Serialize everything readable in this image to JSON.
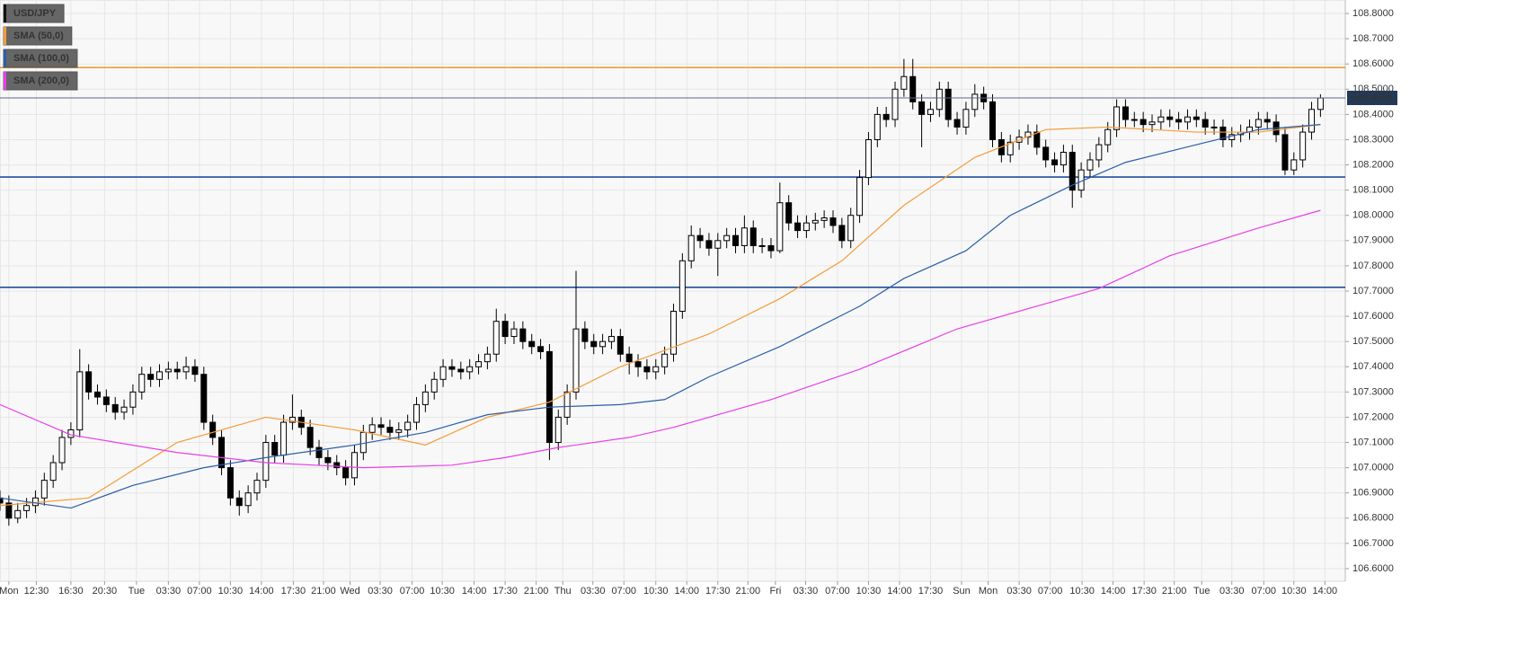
{
  "chart_data": {
    "type": "candlestick",
    "name": "USD/JPY",
    "color": "#000000",
    "up_color": "#ffffff",
    "down_color": "#000000",
    "xlim": [
      0,
      151.8
    ],
    "ylim": [
      106.55,
      108.85
    ],
    "grid": true,
    "yticks": [
      {
        "value": 106.6,
        "label": "106.6000"
      },
      {
        "value": 106.7,
        "label": "106.7000"
      },
      {
        "value": 106.8,
        "label": "106.8000"
      },
      {
        "value": 106.9,
        "label": "106.9000"
      },
      {
        "value": 107.0,
        "label": "107.0000"
      },
      {
        "value": 107.1,
        "label": "107.1000"
      },
      {
        "value": 107.2,
        "label": "107.2000"
      },
      {
        "value": 107.3,
        "label": "107.3000"
      },
      {
        "value": 107.4,
        "label": "107.4000"
      },
      {
        "value": 107.5,
        "label": "107.5000"
      },
      {
        "value": 107.6,
        "label": "107.6000"
      },
      {
        "value": 107.7,
        "label": "107.7000"
      },
      {
        "value": 107.8,
        "label": "107.8000"
      },
      {
        "value": 107.9,
        "label": "107.9000"
      },
      {
        "value": 108.0,
        "label": "108.0000"
      },
      {
        "value": 108.1,
        "label": "108.1000"
      },
      {
        "value": 108.2,
        "label": "108.2000"
      },
      {
        "value": 108.3,
        "label": "108.3000"
      },
      {
        "value": 108.4,
        "label": "108.4000"
      },
      {
        "value": 108.5,
        "label": "108.5000"
      },
      {
        "value": 108.6,
        "label": "108.6000"
      },
      {
        "value": 108.7,
        "label": "108.7000"
      },
      {
        "value": 108.8,
        "label": "108.8000"
      }
    ],
    "xticks": [
      {
        "value": 1.0,
        "label": "Mon"
      },
      {
        "value": 4.1,
        "label": "12:30"
      },
      {
        "value": 8.0,
        "label": "16:30"
      },
      {
        "value": 11.8,
        "label": "20:30"
      },
      {
        "value": 15.4,
        "label": "Tue"
      },
      {
        "value": 19.0,
        "label": "03:30"
      },
      {
        "value": 22.5,
        "label": "07:00"
      },
      {
        "value": 26.0,
        "label": "10:30"
      },
      {
        "value": 29.5,
        "label": "14:00"
      },
      {
        "value": 33.1,
        "label": "17:30"
      },
      {
        "value": 36.5,
        "label": "21:00"
      },
      {
        "value": 39.5,
        "label": "Wed"
      },
      {
        "value": 42.9,
        "label": "03:30"
      },
      {
        "value": 46.5,
        "label": "07:00"
      },
      {
        "value": 49.9,
        "label": "10:30"
      },
      {
        "value": 53.5,
        "label": "14:00"
      },
      {
        "value": 57.0,
        "label": "17:30"
      },
      {
        "value": 60.5,
        "label": "21:00"
      },
      {
        "value": 63.5,
        "label": "Thu"
      },
      {
        "value": 66.9,
        "label": "03:30"
      },
      {
        "value": 70.4,
        "label": "07:00"
      },
      {
        "value": 74.0,
        "label": "10:30"
      },
      {
        "value": 77.5,
        "label": "14:00"
      },
      {
        "value": 81.0,
        "label": "17:30"
      },
      {
        "value": 84.4,
        "label": "21:00"
      },
      {
        "value": 87.5,
        "label": "Fri"
      },
      {
        "value": 90.9,
        "label": "03:30"
      },
      {
        "value": 94.5,
        "label": "07:00"
      },
      {
        "value": 98.0,
        "label": "10:30"
      },
      {
        "value": 101.5,
        "label": "14:00"
      },
      {
        "value": 105.0,
        "label": "17:30"
      },
      {
        "value": 108.5,
        "label": "Sun"
      },
      {
        "value": 111.5,
        "label": "Mon"
      },
      {
        "value": 115.0,
        "label": "03:30"
      },
      {
        "value": 118.5,
        "label": "07:00"
      },
      {
        "value": 122.1,
        "label": "10:30"
      },
      {
        "value": 125.6,
        "label": "14:00"
      },
      {
        "value": 129.1,
        "label": "17:30"
      },
      {
        "value": 132.5,
        "label": "21:00"
      },
      {
        "value": 135.6,
        "label": "Tue"
      },
      {
        "value": 139.0,
        "label": "03:30"
      },
      {
        "value": 142.6,
        "label": "07:00"
      },
      {
        "value": 146.0,
        "label": "10:30"
      },
      {
        "value": 149.5,
        "label": "14:00"
      }
    ],
    "x": [
      0,
      1,
      2,
      3,
      4,
      5,
      6,
      7,
      8,
      9,
      10,
      11,
      12,
      13,
      14,
      15,
      16,
      17,
      18,
      19,
      20,
      21,
      22,
      23,
      24,
      25,
      26,
      27,
      28,
      29,
      30,
      31,
      32,
      33,
      34,
      35,
      36,
      37,
      38,
      39,
      40,
      41,
      42,
      43,
      44,
      45,
      46,
      47,
      48,
      49,
      50,
      51,
      52,
      53,
      54,
      55,
      56,
      57,
      58,
      59,
      60,
      61,
      62,
      63,
      64,
      65,
      66,
      67,
      68,
      69,
      70,
      71,
      72,
      73,
      74,
      75,
      76,
      77,
      78,
      79,
      80,
      81,
      82,
      83,
      84,
      85,
      86,
      87,
      88,
      89,
      90,
      91,
      92,
      93,
      94,
      95,
      96,
      97,
      98,
      99,
      100,
      101,
      102,
      103,
      104,
      105,
      106,
      107,
      108,
      109,
      110,
      111,
      112,
      113,
      114,
      115,
      116,
      117,
      118,
      119,
      120,
      121,
      122,
      123,
      124,
      125,
      126,
      127,
      128,
      129,
      130,
      131,
      132,
      133,
      134,
      135,
      136,
      137,
      138,
      139,
      140,
      141,
      142,
      143,
      144,
      145,
      146,
      147,
      148,
      149
    ],
    "open": [
      106.88,
      106.86,
      106.8,
      106.83,
      106.85,
      106.88,
      106.95,
      107.02,
      107.12,
      107.15,
      107.38,
      107.3,
      107.28,
      107.25,
      107.22,
      107.24,
      107.3,
      107.37,
      107.35,
      107.38,
      107.39,
      107.38,
      107.4,
      107.37,
      107.18,
      107.12,
      107.0,
      106.88,
      106.85,
      106.9,
      106.95,
      107.1,
      107.05,
      107.18,
      107.2,
      107.16,
      107.08,
      107.04,
      107.02,
      107.0,
      106.96,
      107.06,
      107.14,
      107.17,
      107.16,
      107.14,
      107.15,
      107.18,
      107.25,
      107.3,
      107.35,
      107.4,
      107.39,
      107.38,
      107.4,
      107.42,
      107.45,
      107.58,
      107.52,
      107.55,
      107.5,
      107.48,
      107.46,
      107.1,
      107.2,
      107.3,
      107.55,
      107.5,
      107.48,
      107.5,
      107.52,
      107.45,
      107.42,
      107.4,
      107.38,
      107.4,
      107.45,
      107.62,
      107.82,
      107.92,
      107.9,
      107.87,
      107.9,
      107.92,
      107.88,
      107.95,
      107.88,
      107.88,
      107.86,
      108.05,
      107.97,
      107.94,
      107.97,
      107.98,
      107.99,
      107.96,
      107.9,
      108.0,
      108.15,
      108.3,
      108.4,
      108.38,
      108.5,
      108.55,
      108.45,
      108.4,
      108.42,
      108.5,
      108.38,
      108.35,
      108.42,
      108.48,
      108.45,
      108.3,
      108.24,
      108.29,
      108.31,
      108.33,
      108.27,
      108.22,
      108.2,
      108.25,
      108.1,
      108.18,
      108.22,
      108.28,
      108.34,
      108.43,
      108.38,
      108.38,
      108.36,
      108.37,
      108.39,
      108.38,
      108.37,
      108.39,
      108.38,
      108.35,
      108.35,
      108.3,
      108.32,
      108.33,
      108.35,
      108.38,
      108.37,
      108.32,
      108.18,
      108.22,
      108.33,
      108.42
    ],
    "high": [
      106.91,
      106.89,
      106.86,
      106.88,
      106.91,
      106.98,
      107.05,
      107.15,
      107.18,
      107.47,
      107.41,
      107.33,
      107.31,
      107.28,
      107.27,
      107.33,
      107.4,
      107.4,
      107.41,
      107.42,
      107.42,
      107.44,
      107.43,
      107.4,
      107.21,
      107.15,
      107.03,
      106.91,
      106.93,
      106.98,
      107.13,
      107.13,
      107.21,
      107.29,
      107.23,
      107.19,
      107.11,
      107.07,
      107.05,
      107.03,
      107.09,
      107.17,
      107.2,
      107.2,
      107.19,
      107.18,
      107.21,
      107.28,
      107.33,
      107.38,
      107.43,
      107.43,
      107.42,
      107.43,
      107.45,
      107.48,
      107.63,
      107.61,
      107.58,
      107.58,
      107.53,
      107.51,
      107.49,
      107.23,
      107.33,
      107.78,
      107.58,
      107.53,
      107.53,
      107.55,
      107.55,
      107.48,
      107.45,
      107.43,
      107.43,
      107.48,
      107.65,
      107.85,
      107.96,
      107.95,
      107.93,
      107.93,
      107.95,
      107.95,
      108.0,
      107.98,
      107.91,
      107.91,
      108.13,
      108.08,
      108.0,
      108.0,
      108.01,
      108.02,
      108.02,
      107.99,
      108.03,
      108.18,
      108.33,
      108.43,
      108.43,
      108.53,
      108.62,
      108.62,
      108.48,
      108.45,
      108.53,
      108.53,
      108.41,
      108.45,
      108.52,
      108.51,
      108.48,
      108.33,
      108.32,
      108.34,
      108.36,
      108.36,
      108.3,
      108.25,
      108.28,
      108.28,
      108.21,
      108.25,
      108.31,
      108.37,
      108.46,
      108.46,
      108.41,
      108.41,
      108.4,
      108.42,
      108.42,
      108.41,
      108.42,
      108.42,
      108.41,
      108.38,
      108.38,
      108.35,
      108.36,
      108.38,
      108.41,
      108.41,
      108.4,
      108.35,
      108.25,
      108.36,
      108.45,
      108.48
    ],
    "low": [
      106.83,
      106.77,
      106.78,
      106.8,
      106.82,
      106.85,
      106.92,
      106.99,
      107.09,
      107.12,
      107.27,
      107.25,
      107.22,
      107.19,
      107.19,
      107.21,
      107.27,
      107.32,
      107.32,
      107.35,
      107.35,
      107.35,
      107.34,
      107.15,
      107.09,
      106.97,
      106.85,
      106.81,
      106.82,
      106.87,
      106.92,
      107.02,
      107.02,
      107.15,
      107.13,
      107.05,
      107.01,
      106.99,
      106.97,
      106.93,
      106.93,
      107.03,
      107.11,
      107.13,
      107.11,
      107.11,
      107.12,
      107.15,
      107.22,
      107.27,
      107.32,
      107.36,
      107.35,
      107.35,
      107.37,
      107.39,
      107.42,
      107.49,
      107.49,
      107.47,
      107.45,
      107.43,
      107.03,
      107.07,
      107.17,
      107.27,
      107.47,
      107.45,
      107.45,
      107.47,
      107.42,
      107.37,
      107.36,
      107.35,
      107.35,
      107.37,
      107.42,
      107.59,
      107.79,
      107.87,
      107.84,
      107.76,
      107.87,
      107.85,
      107.85,
      107.85,
      107.85,
      107.83,
      107.85,
      107.94,
      107.91,
      107.91,
      107.94,
      107.95,
      107.93,
      107.87,
      107.87,
      107.97,
      108.12,
      108.27,
      108.35,
      108.35,
      108.47,
      108.42,
      108.27,
      108.37,
      108.39,
      108.35,
      108.32,
      108.32,
      108.39,
      108.42,
      108.27,
      108.21,
      108.21,
      108.26,
      108.28,
      108.24,
      108.19,
      108.17,
      108.17,
      108.03,
      108.07,
      108.15,
      108.19,
      108.25,
      108.31,
      108.35,
      108.35,
      108.33,
      108.33,
      108.34,
      108.35,
      108.34,
      108.34,
      108.35,
      108.32,
      108.32,
      108.27,
      108.27,
      108.29,
      108.3,
      108.32,
      108.34,
      108.29,
      108.16,
      108.16,
      108.19,
      108.3,
      108.39
    ],
    "close": [
      106.86,
      106.8,
      106.83,
      106.85,
      106.88,
      106.95,
      107.02,
      107.12,
      107.15,
      107.38,
      107.3,
      107.28,
      107.25,
      107.22,
      107.24,
      107.3,
      107.37,
      107.35,
      107.38,
      107.39,
      107.38,
      107.4,
      107.37,
      107.18,
      107.12,
      107.0,
      106.88,
      106.85,
      106.9,
      106.95,
      107.1,
      107.05,
      107.18,
      107.2,
      107.16,
      107.08,
      107.04,
      107.02,
      107.0,
      106.96,
      107.06,
      107.14,
      107.17,
      107.16,
      107.14,
      107.15,
      107.18,
      107.25,
      107.3,
      107.35,
      107.4,
      107.39,
      107.38,
      107.4,
      107.42,
      107.45,
      107.58,
      107.52,
      107.55,
      107.5,
      107.48,
      107.46,
      107.1,
      107.2,
      107.3,
      107.55,
      107.5,
      107.48,
      107.5,
      107.52,
      107.45,
      107.42,
      107.4,
      107.38,
      107.4,
      107.45,
      107.62,
      107.82,
      107.92,
      107.9,
      107.87,
      107.9,
      107.92,
      107.88,
      107.95,
      107.88,
      107.88,
      107.86,
      108.05,
      107.97,
      107.94,
      107.97,
      107.98,
      107.99,
      107.96,
      107.9,
      108.0,
      108.15,
      108.3,
      108.4,
      108.38,
      108.5,
      108.55,
      108.45,
      108.4,
      108.42,
      108.5,
      108.38,
      108.35,
      108.42,
      108.48,
      108.45,
      108.3,
      108.24,
      108.29,
      108.31,
      108.33,
      108.27,
      108.22,
      108.2,
      108.25,
      108.1,
      108.18,
      108.22,
      108.28,
      108.34,
      108.43,
      108.38,
      108.38,
      108.36,
      108.37,
      108.39,
      108.38,
      108.37,
      108.39,
      108.38,
      108.35,
      108.35,
      108.3,
      108.32,
      108.33,
      108.35,
      108.38,
      108.37,
      108.32,
      108.18,
      108.22,
      108.33,
      108.42,
      108.465
    ],
    "last_price": 108.4655,
    "series": [
      {
        "name": "SMA (50,0)",
        "color": "#f39c38",
        "x": [
          0,
          10,
          20,
          30,
          40,
          48,
          55,
          62,
          70,
          80,
          88,
          95,
          102,
          110,
          118,
          125,
          135,
          142,
          149
        ],
        "values": [
          106.85,
          106.88,
          107.1,
          107.2,
          107.15,
          107.09,
          107.2,
          107.26,
          107.4,
          107.53,
          107.67,
          107.82,
          108.04,
          108.23,
          108.34,
          108.35,
          108.33,
          108.33,
          108.36
        ]
      },
      {
        "name": "SMA (100,0)",
        "color": "#2a5ea8",
        "x": [
          0,
          8,
          15,
          23,
          30,
          40,
          48,
          55,
          62,
          70,
          75,
          80,
          88,
          97,
          102,
          109,
          114,
          121,
          127,
          135,
          142,
          149
        ],
        "values": [
          106.88,
          106.84,
          106.93,
          107.0,
          107.04,
          107.09,
          107.14,
          107.21,
          107.24,
          107.25,
          107.27,
          107.36,
          107.48,
          107.64,
          107.75,
          107.86,
          108.0,
          108.12,
          108.21,
          108.28,
          108.34,
          108.36
        ]
      },
      {
        "name": "SMA (200,0)",
        "color": "#e83ee8",
        "x": [
          0,
          8,
          20,
          30,
          41,
          51,
          57,
          63,
          71,
          76,
          87,
          97,
          108,
          117,
          124,
          132,
          142,
          149
        ],
        "values": [
          107.25,
          107.13,
          107.06,
          107.02,
          107.0,
          107.01,
          107.04,
          107.08,
          107.12,
          107.16,
          107.27,
          107.39,
          107.55,
          107.64,
          107.71,
          107.84,
          107.95,
          108.02
        ]
      }
    ],
    "levels": [
      {
        "value": 108.586,
        "color": "#f39c38"
      },
      {
        "value": 108.152,
        "color": "#1f4e9a"
      },
      {
        "value": 107.715,
        "color": "#1f4e9a"
      }
    ]
  }
}
